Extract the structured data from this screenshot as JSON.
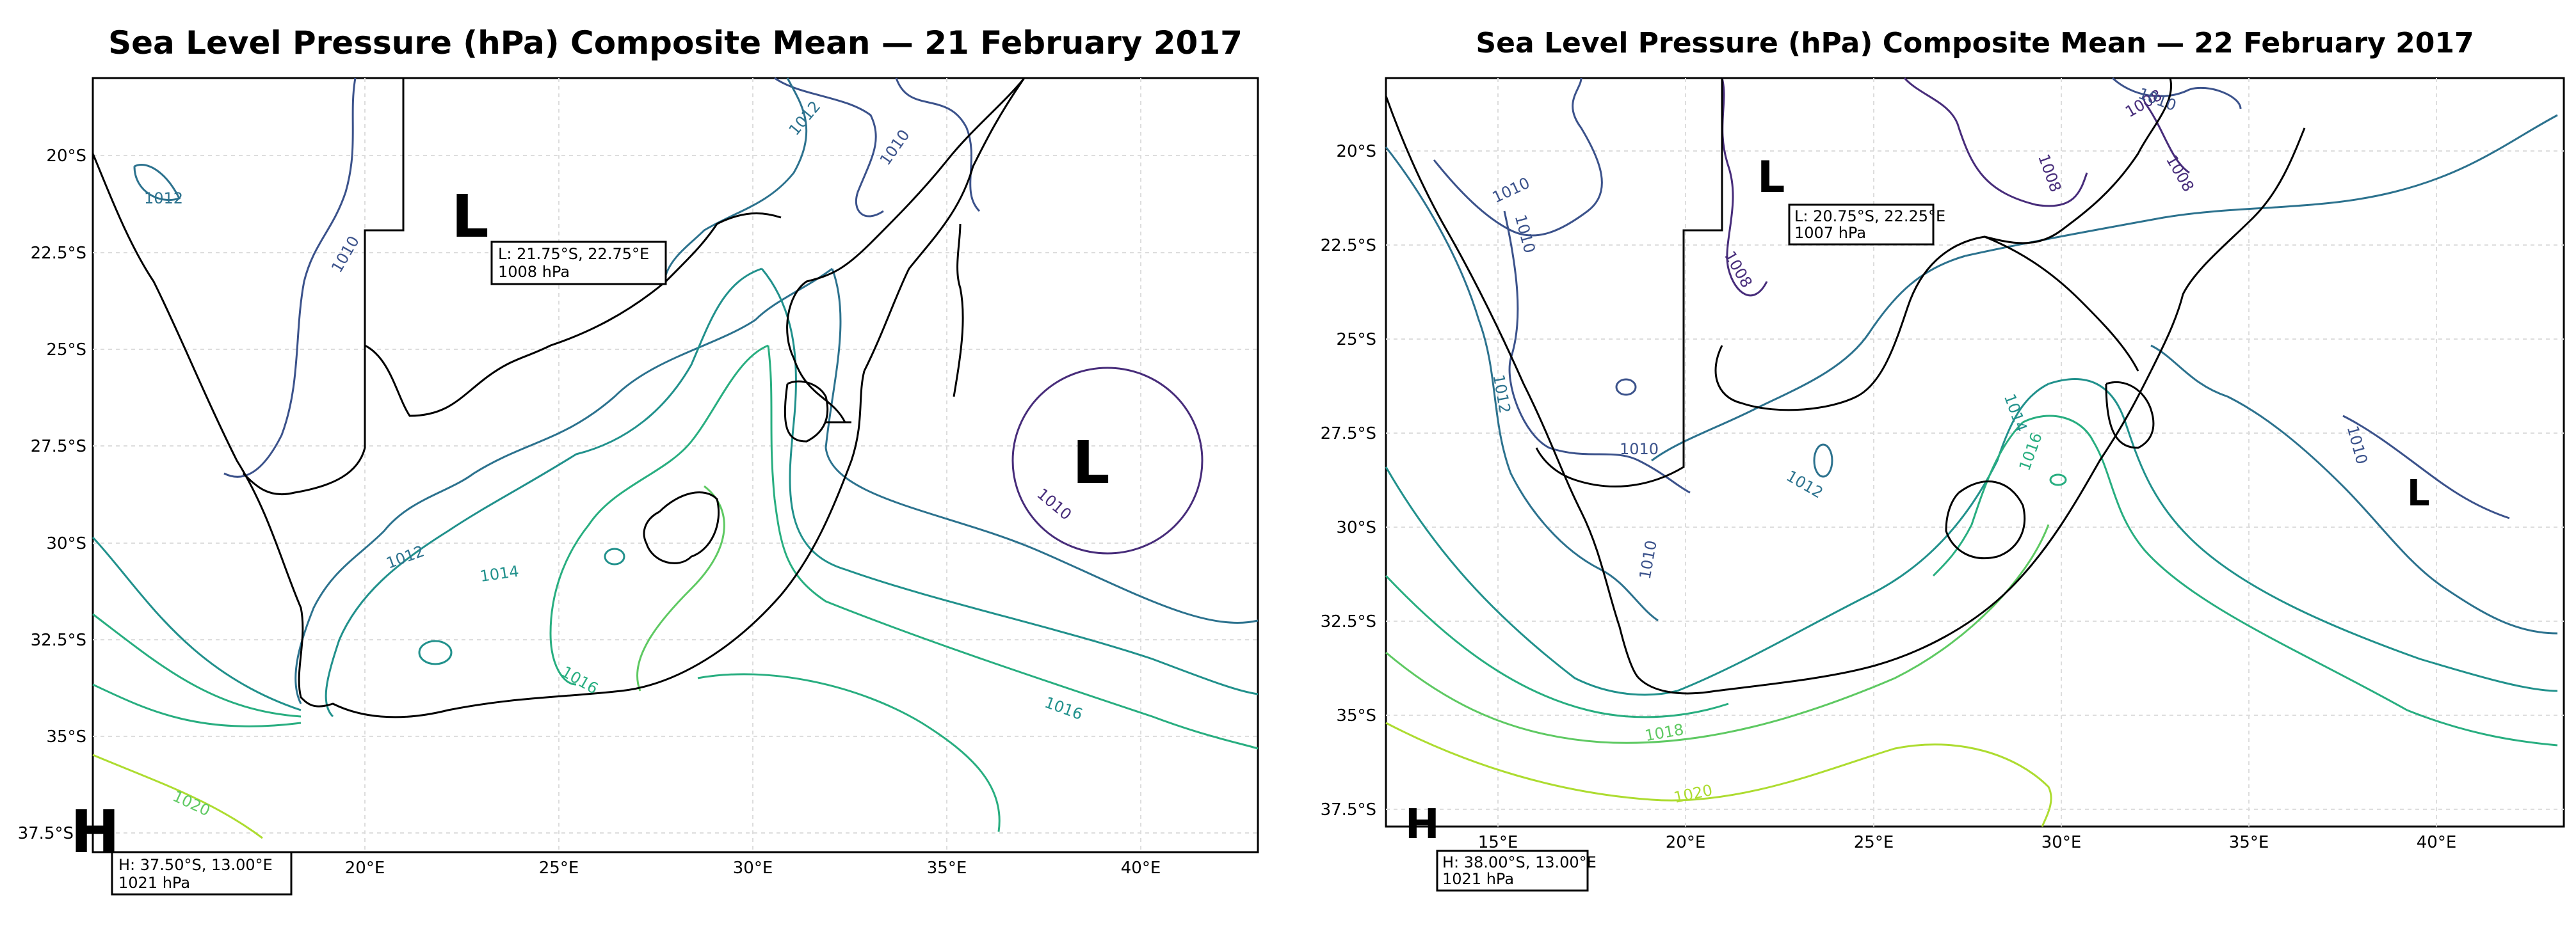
{
  "panels": [
    {
      "title": "Sea Level Pressure (hPa) Composite Mean — 21 February 2017",
      "lat_ticks": [
        "20°S",
        "22.5°S",
        "25°S",
        "27.5°S",
        "30°S",
        "32.5°S",
        "35°S",
        "37.5°S"
      ],
      "lon_ticks": [
        "20°E",
        "25°E",
        "30°E",
        "35°E",
        "40°E"
      ],
      "contour_labels": [
        "1012",
        "1010",
        "1012",
        "1010",
        "1012",
        "1014",
        "1010",
        "1016",
        "1016",
        "1020"
      ],
      "markers": [
        {
          "symbol": "L",
          "info_line1": "L: 21.75°S, 22.75°E",
          "info_line2": "1008 hPa"
        },
        {
          "symbol": "L"
        },
        {
          "symbol": "H",
          "info_line1": "H: 37.50°S, 13.00°E",
          "info_line2": "1021 hPa"
        }
      ]
    },
    {
      "title": "Sea Level Pressure (hPa) Composite Mean — 22 February 2017",
      "lat_ticks": [
        "20°S",
        "22.5°S",
        "25°S",
        "27.5°S",
        "30°S",
        "32.5°S",
        "35°S",
        "37.5°S"
      ],
      "lon_ticks": [
        "15°E",
        "20°E",
        "25°E",
        "30°E",
        "35°E",
        "40°E"
      ],
      "contour_labels": [
        "1008",
        "1010",
        "1008",
        "1008",
        "1010",
        "1010",
        "1008",
        "1012",
        "1010",
        "1012",
        "1014",
        "1016",
        "1010",
        "1010",
        "1018",
        "1020"
      ],
      "markers": [
        {
          "symbol": "L",
          "info_line1": "L: 20.75°S, 22.25°E",
          "info_line2": "1007 hPa"
        },
        {
          "symbol": "L"
        },
        {
          "symbol": "H",
          "info_line1": "H: 38.00°S, 13.00°E",
          "info_line2": "1021 hPa"
        }
      ]
    }
  ],
  "colors": {
    "c1008": "#472c7a",
    "c1010": "#3b528b",
    "c1012": "#2c728e",
    "c1014": "#21918c",
    "c1016": "#28ae80",
    "c1018": "#5ec962",
    "c1020": "#addc30",
    "coast": "#000000",
    "grid": "#dddddd"
  }
}
